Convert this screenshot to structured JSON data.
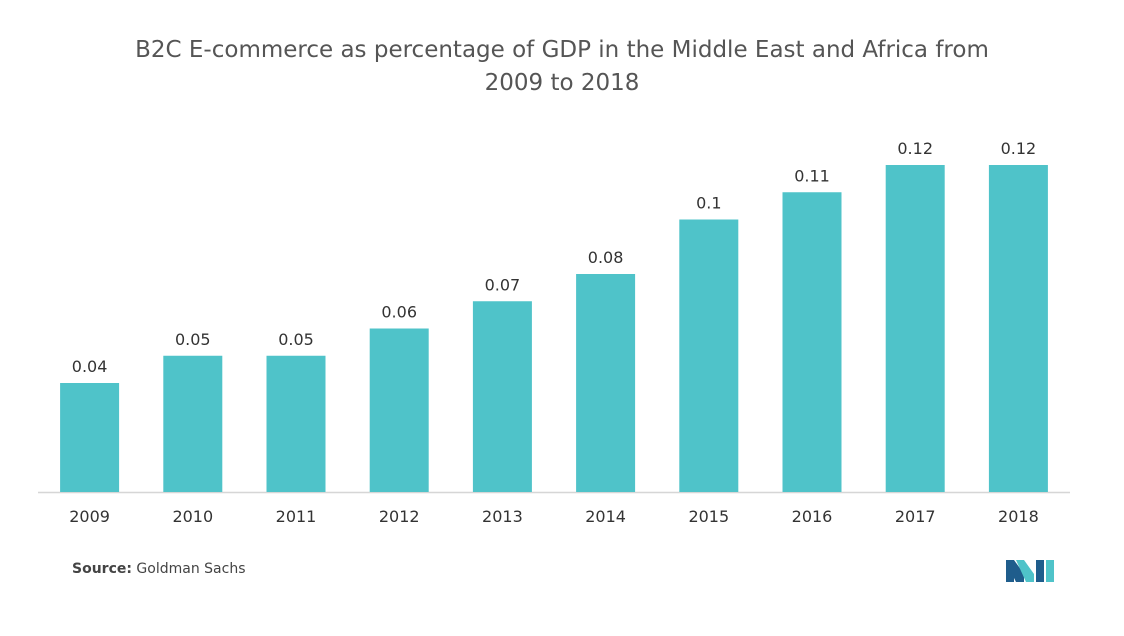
{
  "title_line1": "B2C E-commerce as percentage of GDP in the Middle East and Africa from",
  "title_line2": "2009 to 2018",
  "source_label": "Source:",
  "source_text": "Goldman Sachs",
  "colors": {
    "bar": "#4fc3c9",
    "axis": "#d6d6d6",
    "text": "#333333",
    "logo_dark": "#1f5d8c",
    "logo_light": "#4fc3c9"
  },
  "chart_data": {
    "type": "bar",
    "title": "B2C E-commerce as percentage of GDP in the Middle East and Africa from 2009 to 2018",
    "xlabel": "",
    "ylabel": "",
    "categories": [
      "2009",
      "2010",
      "2011",
      "2012",
      "2013",
      "2014",
      "2015",
      "2016",
      "2017",
      "2018"
    ],
    "values": [
      0.04,
      0.05,
      0.05,
      0.06,
      0.07,
      0.08,
      0.1,
      0.11,
      0.12,
      0.12
    ],
    "value_labels": [
      "0.04",
      "0.05",
      "0.05",
      "0.06",
      "0.07",
      "0.08",
      "0.1",
      "0.11",
      "0.12",
      "0.12"
    ],
    "grid": false,
    "legend": "none"
  }
}
